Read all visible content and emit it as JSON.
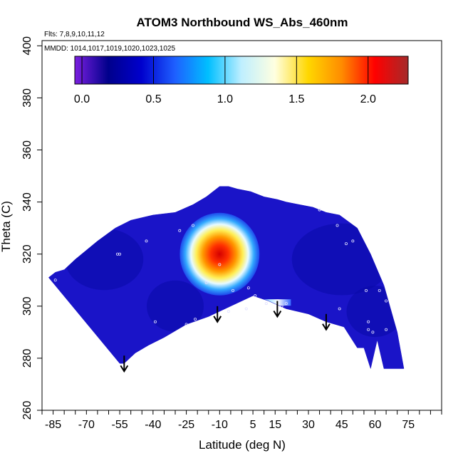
{
  "chart_data": {
    "type": "heatmap",
    "title": "ATOM3 Northbound WS_Abs_460nm",
    "flights_note": "Flts: 7,8,9,10,11,12",
    "mmdd_note": "MMDD: 1014,1017,1019,1020,1023,1025",
    "xlabel": "Latitude (deg N)",
    "ylabel": "Theta (C)",
    "xlim": [
      -90,
      90
    ],
    "ylim": [
      260,
      402
    ],
    "x_ticks": [
      -85,
      -70,
      -55,
      -40,
      -25,
      -10,
      5,
      15,
      30,
      45,
      60,
      75
    ],
    "x_minor_step": 5,
    "y_ticks": [
      260,
      280,
      300,
      320,
      340,
      360,
      380,
      400
    ],
    "colorbar": {
      "min": -0.05,
      "max": 2.28,
      "ticks": [
        0.0,
        0.5,
        1.0,
        1.5,
        2.0
      ],
      "tick_labels": [
        "0.0",
        "0.5",
        "1.0",
        "1.5",
        "2.0"
      ],
      "colors": [
        "#7b1fe0",
        "#00008b",
        "#0000cd",
        "#1e5fff",
        "#00bfff",
        "#bfefff",
        "#ffffe0",
        "#ffd700",
        "#ff8c00",
        "#ff0000",
        "#a52a2a"
      ]
    },
    "field_outline": {
      "lat": [
        -87,
        -84,
        -80,
        -75,
        -65,
        -57,
        -50,
        -40,
        -30,
        -22,
        -16,
        -10,
        -6,
        -2,
        4,
        10,
        16,
        20,
        26,
        32,
        38,
        44,
        52,
        58,
        64,
        70,
        73,
        72,
        64,
        61,
        58,
        55,
        52,
        46,
        38,
        30,
        20,
        12,
        5,
        -5,
        -15,
        -25,
        -35,
        -42,
        -48,
        -53,
        -55
      ],
      "theta": [
        311,
        313,
        314,
        318,
        325,
        330,
        333,
        335,
        336,
        339,
        342,
        346,
        346,
        345,
        344,
        342,
        341,
        340,
        339,
        338,
        336,
        335,
        330,
        320,
        308,
        290,
        276,
        276,
        276,
        287,
        276,
        284,
        284,
        292,
        294,
        297,
        299,
        302,
        304,
        300,
        296,
        293,
        288,
        285,
        282,
        278,
        278
      ]
    },
    "max_feature": {
      "lat": -10,
      "theta": 318,
      "value": 2.2
    },
    "secondary_feature": {
      "lat": 17,
      "theta": 301,
      "value": 1.0
    },
    "profile_arrows_lat": [
      -53,
      -11,
      16,
      38
    ],
    "sample_points": [
      {
        "lat": -84,
        "theta": 310
      },
      {
        "lat": -56,
        "theta": 320
      },
      {
        "lat": -55,
        "theta": 320
      },
      {
        "lat": -43,
        "theta": 325
      },
      {
        "lat": -28,
        "theta": 329
      },
      {
        "lat": -22,
        "theta": 331
      },
      {
        "lat": -16,
        "theta": 309
      },
      {
        "lat": -10,
        "theta": 316
      },
      {
        "lat": -4,
        "theta": 306
      },
      {
        "lat": 3,
        "theta": 307
      },
      {
        "lat": 6,
        "theta": 304
      },
      {
        "lat": -6,
        "theta": 298
      },
      {
        "lat": 2,
        "theta": 299
      },
      {
        "lat": -39,
        "theta": 294
      },
      {
        "lat": -25,
        "theta": 293
      },
      {
        "lat": -21,
        "theta": 295
      },
      {
        "lat": 11,
        "theta": 301
      },
      {
        "lat": 18,
        "theta": 300
      },
      {
        "lat": 20,
        "theta": 301
      },
      {
        "lat": 35,
        "theta": 337
      },
      {
        "lat": 43,
        "theta": 331
      },
      {
        "lat": 50,
        "theta": 325
      },
      {
        "lat": 47,
        "theta": 324
      },
      {
        "lat": 44,
        "theta": 299
      },
      {
        "lat": 37,
        "theta": 293
      },
      {
        "lat": 38,
        "theta": 292
      },
      {
        "lat": 56,
        "theta": 306
      },
      {
        "lat": 62,
        "theta": 306
      },
      {
        "lat": 65,
        "theta": 302
      },
      {
        "lat": 57,
        "theta": 294
      },
      {
        "lat": 57,
        "theta": 291
      },
      {
        "lat": 59,
        "theta": 290
      },
      {
        "lat": 65,
        "theta": 291
      }
    ]
  }
}
